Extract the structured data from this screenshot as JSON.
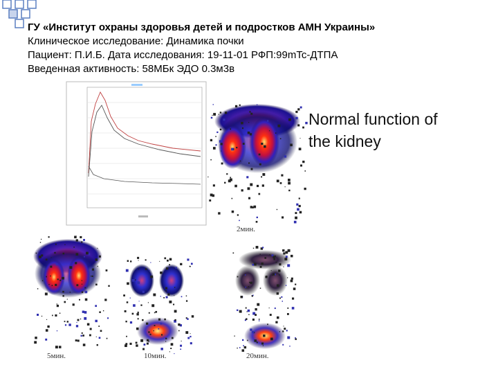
{
  "header": {
    "lines": [
      "ГУ «Институт охраны здоровья детей и подростков АМН Украины»",
      "Клиническое исследование: Динамика почки",
      "Пациент: П.И.Б.   Дата исследования: 19-11-01 РФП:99mTc-ДТПА",
      "Введенная активность: 58МБк  ЭДО     0.3м3в"
    ]
  },
  "caption": {
    "lines": [
      "Normal function of",
      "the kidney"
    ]
  },
  "images": [
    {
      "label": "2мин."
    },
    {
      "label": "5мин."
    },
    {
      "label": "10мин."
    },
    {
      "label": "20мин."
    }
  ]
}
